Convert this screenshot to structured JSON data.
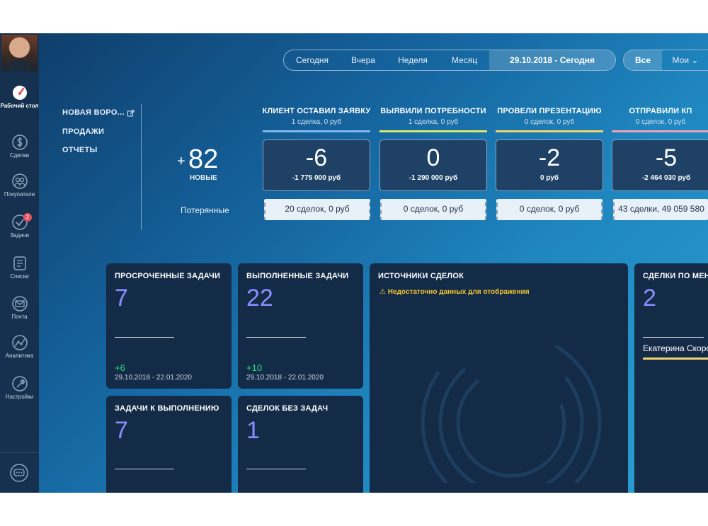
{
  "sidebar": {
    "items": [
      {
        "label": "Рабочий стол",
        "icon": "speedometer-icon"
      },
      {
        "label": "Сделки",
        "icon": "dollar-icon"
      },
      {
        "label": "Покупатели",
        "icon": "customers-icon"
      },
      {
        "label": "Задачи",
        "icon": "check-circle-icon",
        "badge": "2"
      },
      {
        "label": "Списки",
        "icon": "list-icon"
      },
      {
        "label": "Почта",
        "icon": "mail-icon"
      },
      {
        "label": "Аналитика",
        "icon": "analytics-icon"
      },
      {
        "label": "Настройки",
        "icon": "wrench-icon"
      }
    ],
    "chat_icon": "chat-icon"
  },
  "period": {
    "options": [
      "Сегодня",
      "Вчера",
      "Неделя",
      "Месяц"
    ],
    "selected": "29.10.2018 - Сегодня"
  },
  "owner": {
    "options": [
      "Все",
      "Мои"
    ],
    "selected": "Все"
  },
  "pipeline_menu": {
    "items": [
      "НОВАЯ ВОРО...",
      "ПРОДАЖИ",
      "ОТЧЕТЫ"
    ]
  },
  "new_deals": {
    "plus": "+",
    "count": "82",
    "label": "НОВЫЕ",
    "lost_label": "Потерянные"
  },
  "stages": [
    {
      "title": "КЛИЕНТ ОСТАВИЛ ЗАЯВКУ",
      "sub": "1 сделка, 0 руб",
      "color": "#7fb8ea",
      "value": "-6",
      "sum": "-1 775 000 руб",
      "lost": "20 сделок, 0 руб"
    },
    {
      "title": "ВЫЯВИЛИ ПОТРЕБНОСТИ",
      "sub": "1 сделка, 0 руб",
      "color": "#d8e86a",
      "value": "0",
      "sum": "-1 290 000 руб",
      "lost": "0 сделок, 0 руб"
    },
    {
      "title": "ПРОВЕЛИ ПРЕЗЕНТАЦИЮ",
      "sub": "0 сделок, 0 руб",
      "color": "#f2d36b",
      "value": "-2",
      "sum": "0 руб",
      "lost": "0 сделок, 0 руб"
    },
    {
      "title": "ОТПРАВИЛИ КП",
      "sub": "0 сделок, 0 руб",
      "color": "#f0a0b6",
      "value": "-5",
      "sum": "-2 464 030 руб",
      "lost": "43 сделки, 49 059 580"
    }
  ],
  "widgets": {
    "overdue": {
      "title": "ПРОСРОЧЕННЫЕ ЗАДАЧИ",
      "value": "7",
      "delta": "+6",
      "range": "29.10.2018 - 22.01.2020"
    },
    "done": {
      "title": "ВЫПОЛНЕННЫЕ ЗАДАЧИ",
      "value": "22",
      "delta": "+10",
      "range": "29.10.2018 - 22.01.2020"
    },
    "todo": {
      "title": "ЗАДАЧИ К ВЫПОЛНЕНИЮ",
      "value": "7"
    },
    "no_tasks": {
      "title": "СДЕЛОК БЕЗ ЗАДАЧ",
      "value": "1"
    },
    "sources": {
      "title": "ИСТОЧНИКИ СДЕЛОК",
      "warning": "Недостаточно данных для отображения"
    },
    "by_manager": {
      "title": "СДЕЛКИ ПО МЕНЕ",
      "value": "2",
      "manager": "Екатерина Скоро"
    }
  }
}
